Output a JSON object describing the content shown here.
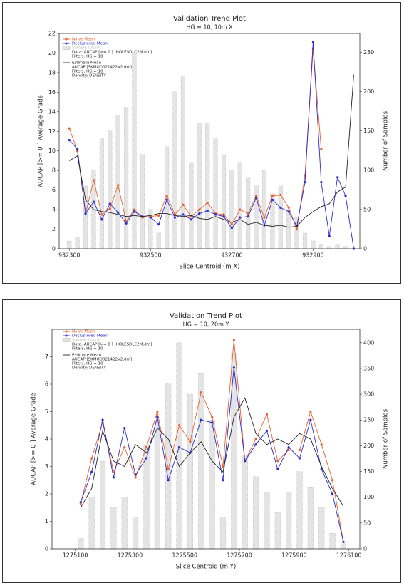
{
  "chart_data": [
    {
      "type": "line",
      "title": "Validation Trend Plot",
      "subtitle": "HG = 10, 10m X",
      "x_label": "Slice Centroid (m X)",
      "y_label": "AUCAP [>= 0 ] Average Grade",
      "y2_label": "Number of Samples",
      "xlim": [
        932275,
        933015
      ],
      "xticks": [
        932300,
        932500,
        932700,
        932900
      ],
      "ylim": [
        0,
        22
      ],
      "yticks": [
        0,
        2,
        4,
        6,
        8,
        10,
        12,
        14,
        16,
        18,
        20,
        22
      ],
      "y2lim": [
        0,
        274
      ],
      "y2ticks": [
        0,
        50,
        100,
        150,
        200,
        250
      ],
      "legend": "upper left",
      "grid": false,
      "x": [
        932300,
        932320,
        932340,
        932360,
        932380,
        932400,
        932420,
        932440,
        932460,
        932480,
        932500,
        932520,
        932540,
        932560,
        932580,
        932600,
        932620,
        932640,
        932660,
        932680,
        932700,
        932720,
        932740,
        932760,
        932780,
        932800,
        932820,
        932840,
        932860,
        932880,
        932900,
        932920,
        932940,
        932960,
        932980,
        933000
      ],
      "series": [
        {
          "name": "Naive Mean",
          "type": "line",
          "marker": true,
          "color": "#e8602c",
          "values": [
            12.3,
            10.0,
            3.6,
            7.0,
            3.5,
            4.1,
            6.5,
            2.8,
            4.0,
            3.2,
            3.3,
            3.4,
            5.4,
            3.5,
            4.5,
            3.3,
            4.0,
            4.7,
            3.6,
            3.5,
            2.5,
            4.0,
            3.6,
            5.4,
            3.2,
            5.4,
            5.5,
            4.2,
            2.0,
            7.5,
            20.4,
            10.2,
            null,
            null,
            null,
            null
          ]
        },
        {
          "name": "Declustered Mean",
          "type": "line",
          "marker": true,
          "color": "#2a2ad0",
          "values": [
            11.1,
            10.2,
            3.6,
            4.8,
            3.0,
            4.6,
            3.7,
            2.6,
            3.8,
            3.3,
            3.2,
            2.5,
            5.0,
            3.2,
            3.5,
            3.0,
            3.6,
            3.9,
            3.5,
            3.3,
            2.1,
            3.2,
            3.3,
            5.2,
            2.4,
            5.0,
            4.2,
            3.8,
            2.3,
            6.8,
            21.1,
            6.8,
            1.3,
            7.3,
            5.4,
            0
          ]
        },
        {
          "name": "Sample Count",
          "type": "bar",
          "axis": "y2",
          "color": "#e4e4e4",
          "notes": [
            "Data: AUCAP [>= 0 ] [HOLESDLC2M.dm]",
            "Filters: HG = 10"
          ],
          "values": [
            10,
            15,
            80,
            100,
            140,
            150,
            170,
            180,
            250,
            120,
            50,
            20,
            130,
            200,
            220,
            110,
            160,
            160,
            140,
            120,
            100,
            110,
            90,
            80,
            100,
            70,
            80,
            50,
            40,
            20,
            10,
            5,
            3,
            5,
            3,
            0
          ]
        },
        {
          "name": "Estimate Mean",
          "type": "line",
          "marker": false,
          "color": "#222222",
          "notes": [
            "AUCAP [SKMOD021422V2.dm]",
            "Filters: HG = 10",
            "Density: DENSITY"
          ],
          "values": [
            9.0,
            9.5,
            5.0,
            4.0,
            3.8,
            3.7,
            3.5,
            3.3,
            3.4,
            3.3,
            3.4,
            3.6,
            3.6,
            3.4,
            3.3,
            3.4,
            3.1,
            3.0,
            3.3,
            3.0,
            2.7,
            3.0,
            2.5,
            2.7,
            2.4,
            2.3,
            2.4,
            2.2,
            2.3,
            3.2,
            3.8,
            4.3,
            4.6,
            5.8,
            6.3,
            17.8
          ]
        }
      ]
    },
    {
      "type": "line",
      "title": "Validation Trend Plot",
      "subtitle": "HG = 10, 20m Y",
      "x_label": "Slice Centroid (m Y)",
      "y_label": "AUCAP [>= 0 ] Average Grade",
      "y2_label": "Number of Samples",
      "xlim": [
        1275015,
        1276140
      ],
      "xticks": [
        1275100,
        1275300,
        1275500,
        1275700,
        1275900,
        1276100
      ],
      "ylim": [
        0,
        8
      ],
      "yticks": [
        0,
        1,
        2,
        3,
        4,
        5,
        6,
        7
      ],
      "y2lim": [
        0,
        426
      ],
      "y2ticks": [
        0,
        50,
        100,
        150,
        200,
        250,
        300,
        350,
        400
      ],
      "legend": "upper left",
      "grid": false,
      "x": [
        1275120,
        1275160,
        1275200,
        1275240,
        1275280,
        1275320,
        1275360,
        1275400,
        1275440,
        1275480,
        1275520,
        1275560,
        1275600,
        1275640,
        1275680,
        1275720,
        1275760,
        1275800,
        1275840,
        1275880,
        1275920,
        1275960,
        1276000,
        1276040,
        1276080
      ],
      "series": [
        {
          "name": "Naive Mean",
          "type": "line",
          "marker": true,
          "color": "#e8602c",
          "values": [
            1.65,
            3.3,
            4.6,
            2.8,
            3.7,
            2.6,
            3.7,
            5.0,
            2.9,
            4.5,
            3.9,
            5.7,
            4.8,
            3.0,
            7.6,
            3.2,
            4.0,
            4.9,
            3.2,
            3.6,
            3.6,
            5.0,
            3.8,
            2.5,
            0.25
          ]
        },
        {
          "name": "Declustered Mean",
          "type": "line",
          "marker": true,
          "color": "#2a2ad0",
          "values": [
            1.7,
            2.8,
            4.7,
            2.6,
            4.4,
            2.7,
            3.3,
            4.8,
            2.5,
            3.7,
            3.5,
            4.7,
            4.6,
            2.5,
            6.6,
            3.2,
            3.8,
            4.3,
            2.9,
            3.7,
            3.3,
            4.7,
            2.9,
            2.0,
            0.25
          ]
        },
        {
          "name": "Sample Count",
          "type": "bar",
          "axis": "y2",
          "color": "#e4e4e4",
          "notes": [
            "Data: AUCAP [>= 0 ] [HOLESDLC2M.dm]",
            "Filters: HG = 10"
          ],
          "values": [
            20,
            100,
            170,
            80,
            100,
            60,
            200,
            250,
            320,
            400,
            300,
            340,
            250,
            60,
            380,
            180,
            140,
            110,
            70,
            110,
            150,
            120,
            80,
            30,
            10
          ]
        },
        {
          "name": "Estimate Mean",
          "type": "line",
          "marker": false,
          "color": "#222222",
          "notes": [
            "AUCAP [SKMOD021422V2.dm]",
            "Filters: HG = 10",
            "Density: DENSITY"
          ],
          "values": [
            1.5,
            2.2,
            4.3,
            3.2,
            3.0,
            3.8,
            3.5,
            4.4,
            4.0,
            3.0,
            3.5,
            3.9,
            3.2,
            2.8,
            4.8,
            5.5,
            4.2,
            3.8,
            4.0,
            3.8,
            4.2,
            4.0,
            3.0,
            2.2,
            1.55
          ]
        }
      ]
    }
  ]
}
